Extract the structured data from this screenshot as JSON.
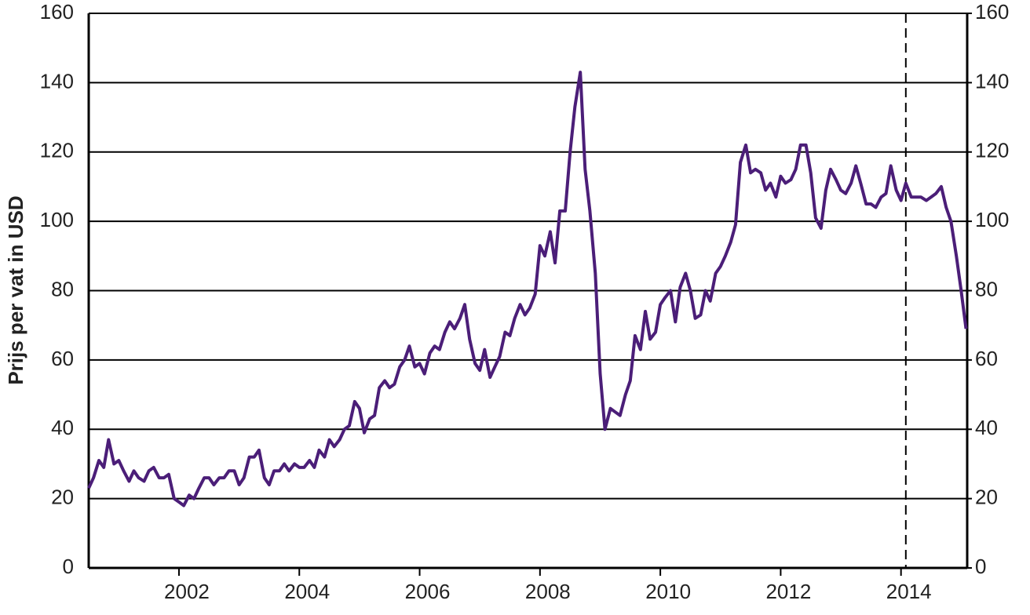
{
  "chart_data": {
    "type": "line",
    "y_label": "Prijs per vat in USD",
    "x": [
      2000.5,
      2000.58,
      2000.67,
      2000.75,
      2000.83,
      2000.92,
      2001,
      2001.08,
      2001.17,
      2001.25,
      2001.33,
      2001.42,
      2001.5,
      2001.58,
      2001.67,
      2001.75,
      2001.83,
      2001.92,
      2002,
      2002.08,
      2002.17,
      2002.25,
      2002.33,
      2002.42,
      2002.5,
      2002.58,
      2002.67,
      2002.75,
      2002.83,
      2002.92,
      2003,
      2003.08,
      2003.17,
      2003.25,
      2003.33,
      2003.42,
      2003.5,
      2003.58,
      2003.67,
      2003.75,
      2003.83,
      2003.92,
      2004,
      2004.08,
      2004.17,
      2004.25,
      2004.33,
      2004.42,
      2004.5,
      2004.58,
      2004.67,
      2004.75,
      2004.83,
      2004.92,
      2005,
      2005.08,
      2005.17,
      2005.25,
      2005.33,
      2005.42,
      2005.5,
      2005.58,
      2005.67,
      2005.75,
      2005.83,
      2005.92,
      2006,
      2006.08,
      2006.17,
      2006.25,
      2006.33,
      2006.42,
      2006.5,
      2006.58,
      2006.67,
      2006.75,
      2006.83,
      2006.92,
      2007,
      2007.08,
      2007.17,
      2007.25,
      2007.33,
      2007.42,
      2007.5,
      2007.58,
      2007.67,
      2007.75,
      2007.83,
      2007.92,
      2008,
      2008.08,
      2008.17,
      2008.25,
      2008.33,
      2008.42,
      2008.5,
      2008.58,
      2008.67,
      2008.75,
      2008.83,
      2008.92,
      2009,
      2009.08,
      2009.17,
      2009.25,
      2009.33,
      2009.42,
      2009.5,
      2009.58,
      2009.67,
      2009.75,
      2009.83,
      2009.92,
      2010,
      2010.08,
      2010.17,
      2010.25,
      2010.33,
      2010.42,
      2010.5,
      2010.58,
      2010.67,
      2010.75,
      2010.83,
      2010.92,
      2011,
      2011.08,
      2011.17,
      2011.25,
      2011.33,
      2011.42,
      2011.5,
      2011.58,
      2011.67,
      2011.75,
      2011.83,
      2011.92,
      2012,
      2012.08,
      2012.17,
      2012.25,
      2012.33,
      2012.42,
      2012.5,
      2012.58,
      2012.67,
      2012.75,
      2012.83,
      2012.92,
      2013,
      2013.08,
      2013.17,
      2013.25,
      2013.33,
      2013.42,
      2013.5,
      2013.58,
      2013.67,
      2013.75,
      2013.83,
      2013.92,
      2014,
      2014.08,
      2014.17,
      2014.25,
      2014.33,
      2014.42,
      2014.5,
      2014.58,
      2014.67,
      2014.75,
      2014.83,
      2014.92,
      2015,
      2015.08
    ],
    "series": [
      {
        "color": "#4b1e78",
        "values": [
          23,
          26,
          31,
          29,
          37,
          30,
          31,
          28,
          25,
          28,
          26,
          25,
          28,
          29,
          26,
          26,
          27,
          20,
          19,
          18,
          21,
          20,
          23,
          26,
          26,
          24,
          26,
          26,
          28,
          28,
          24,
          26,
          32,
          32,
          34,
          26,
          24,
          28,
          28,
          30,
          28,
          30,
          29,
          29,
          31,
          29,
          34,
          32,
          37,
          35,
          37,
          40,
          41,
          48,
          46,
          39,
          43,
          44,
          52,
          54,
          52,
          53,
          58,
          60,
          64,
          58,
          59,
          56,
          62,
          64,
          63,
          68,
          71,
          69,
          72,
          76,
          66,
          59,
          57,
          63,
          55,
          58,
          61,
          68,
          67,
          72,
          76,
          73,
          75,
          79,
          93,
          90,
          97,
          88,
          103,
          103,
          120,
          133,
          143,
          115,
          103,
          85,
          56,
          40,
          46,
          45,
          44,
          50,
          54,
          67,
          63,
          74,
          66,
          68,
          76,
          78,
          80,
          71,
          81,
          85,
          80,
          72,
          73,
          80,
          77,
          85,
          87,
          90,
          94,
          99,
          117,
          122,
          114,
          115,
          114,
          109,
          111,
          107,
          113,
          111,
          112,
          115,
          122,
          122,
          114,
          101,
          98,
          109,
          115,
          112,
          109,
          108,
          111,
          116,
          111,
          105,
          105,
          104,
          107,
          108,
          116,
          109,
          106,
          111,
          107,
          107,
          107,
          106,
          107,
          108,
          110,
          104,
          100,
          90,
          80,
          69
        ]
      }
    ],
    "xlim": [
      2000.5,
      2015.1
    ],
    "xticks": [
      2002,
      2004,
      2006,
      2008,
      2010,
      2012,
      2014
    ],
    "ylim": [
      0,
      160
    ],
    "yticks": [
      0,
      20,
      40,
      60,
      80,
      100,
      120,
      140,
      160
    ],
    "y2lim": [
      0,
      160
    ],
    "y2ticks": [
      0,
      20,
      40,
      60,
      80,
      100,
      120,
      140,
      160
    ],
    "vline": 2014.08,
    "grid": true
  }
}
